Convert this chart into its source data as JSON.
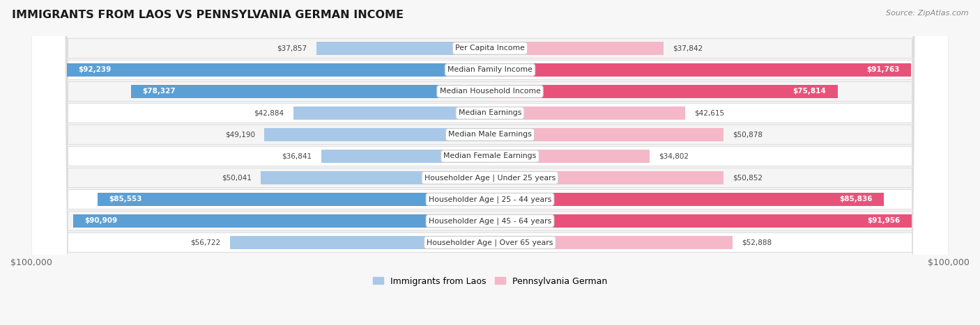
{
  "title": "IMMIGRANTS FROM LAOS VS PENNSYLVANIA GERMAN INCOME",
  "source": "Source: ZipAtlas.com",
  "categories": [
    "Per Capita Income",
    "Median Family Income",
    "Median Household Income",
    "Median Earnings",
    "Median Male Earnings",
    "Median Female Earnings",
    "Householder Age | Under 25 years",
    "Householder Age | 25 - 44 years",
    "Householder Age | 45 - 64 years",
    "Householder Age | Over 65 years"
  ],
  "laos_values": [
    37857,
    92239,
    78327,
    42884,
    49190,
    36841,
    50041,
    85553,
    90909,
    56722
  ],
  "pagerman_values": [
    37842,
    91763,
    75814,
    42615,
    50878,
    34802,
    50852,
    85836,
    91956,
    52888
  ],
  "laos_color_light": "#A8C8E8",
  "laos_color_dark": "#5B9FD4",
  "pagerman_color_light": "#F4B8C8",
  "pagerman_color_dark": "#E8527A",
  "large_threshold": 60000,
  "max_value": 100000,
  "background_color": "#f7f7f7",
  "row_bg_light": "#f5f5f5",
  "row_bg_white": "#ffffff",
  "legend_laos": "Immigrants from Laos",
  "legend_pagerman": "Pennsylvania German",
  "xlabel_left": "$100,000",
  "xlabel_right": "$100,000"
}
